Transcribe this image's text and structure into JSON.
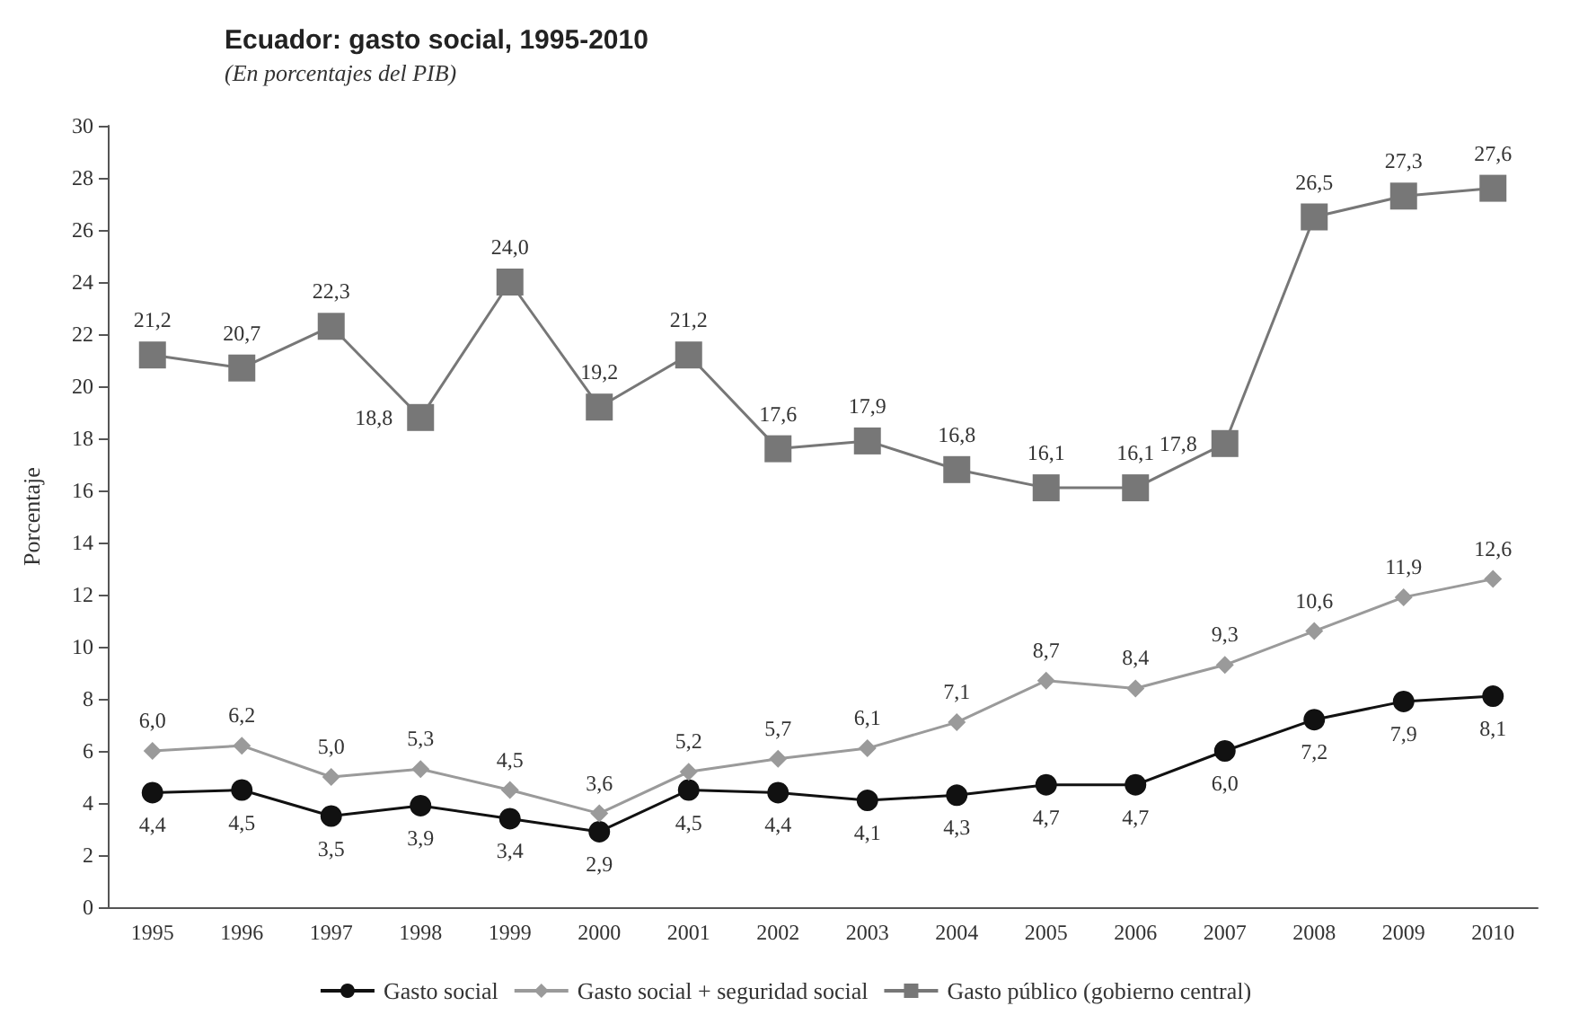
{
  "chart_data": {
    "type": "line",
    "title": "Ecuador: gasto social, 1995-2010",
    "subtitle": "(En porcentajes del PIB)",
    "ylabel": "Porcentaje",
    "categories": [
      "1995",
      "1996",
      "1997",
      "1998",
      "1999",
      "2000",
      "2001",
      "2002",
      "2003",
      "2004",
      "2005",
      "2006",
      "2007",
      "2008",
      "2009",
      "2010"
    ],
    "ylim": [
      0,
      30
    ],
    "yticks": [
      0,
      2,
      4,
      6,
      8,
      10,
      12,
      14,
      16,
      18,
      20,
      22,
      24,
      26,
      28,
      30
    ],
    "grid": false,
    "legend": "bottom",
    "line_style": "solid",
    "series": [
      {
        "name": "Gasto social",
        "color": "#111111",
        "marker": "circle",
        "values": [
          4.4,
          4.5,
          3.5,
          3.9,
          3.4,
          2.9,
          4.5,
          4.4,
          4.1,
          4.3,
          4.7,
          4.7,
          6.0,
          7.2,
          7.9,
          8.1
        ],
        "value_labels": [
          "4,4",
          "4,5",
          "3,5",
          "3,9",
          "3,4",
          "2,9",
          "4,5",
          "4,4",
          "4,1",
          "4,3",
          "4,7",
          "4,7",
          "6,0",
          "7,2",
          "7,9",
          "8,1"
        ]
      },
      {
        "name": "Gasto social + seguridad social",
        "color": "#9a9a9a",
        "marker": "diamond",
        "values": [
          6.0,
          6.2,
          5.0,
          5.3,
          4.5,
          3.6,
          5.2,
          5.7,
          6.1,
          7.1,
          8.7,
          8.4,
          9.3,
          10.6,
          11.9,
          12.6
        ],
        "value_labels": [
          "6,0",
          "6,2",
          "5,0",
          "5,3",
          "4,5",
          "3,6",
          "5,2",
          "5,7",
          "6,1",
          "7,1",
          "8,7",
          "8,4",
          "9,3",
          "10,6",
          "11,9",
          "12,6"
        ]
      },
      {
        "name": "Gasto público (gobierno central)",
        "color": "#777777",
        "marker": "square",
        "values": [
          21.2,
          20.7,
          22.3,
          18.8,
          24.0,
          19.2,
          21.2,
          17.6,
          17.9,
          16.8,
          16.1,
          16.1,
          17.8,
          26.5,
          27.3,
          27.6
        ],
        "value_labels": [
          "21,2",
          "20,7",
          "22,3",
          "18,8",
          "24,0",
          "19,2",
          "21,2",
          "17,6",
          "17,9",
          "16,8",
          "16,1",
          "16,1",
          "17,8",
          "26,5",
          "27,3",
          "27,6"
        ]
      }
    ]
  }
}
